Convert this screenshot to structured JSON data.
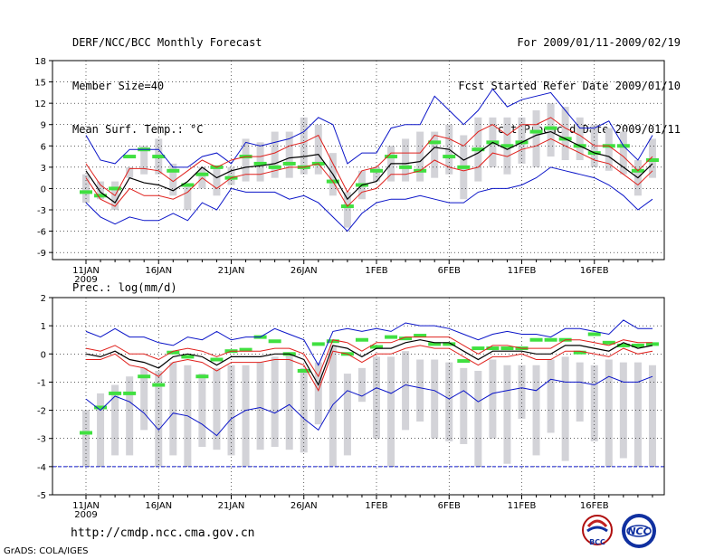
{
  "header": {
    "title": "DERF/NCC/BCC Monthly Forecast",
    "member_size": "Member Size=40",
    "variable": "Mean Surf. Temp.: °C",
    "period": "For 2009/01/11-2009/02/19",
    "started": "Fcst Started Refer Date 2009/01/10",
    "produced": "Fcst Produced Date 2009/01/11"
  },
  "footer": {
    "url": "http://cmdp.ncc.cma.gov.cn",
    "grads": "GrADS: COLA/IGES",
    "logo_bcc": "BCC",
    "logo_ncc": "NCC"
  },
  "colors": {
    "ensemble_mean": "#000000",
    "spread_band": "#e0201c",
    "extreme_band": "#0a14c8",
    "climatology": "#40e040",
    "member_range": "#d3d3d8",
    "grid": "#000000"
  },
  "chart_data": [
    {
      "type": "line",
      "title": "Mean Surf. Temp.: °C",
      "ylim": [
        -10,
        18
      ],
      "yticks": [
        -9,
        -6,
        -3,
        0,
        3,
        6,
        9,
        12,
        15,
        18
      ],
      "ytick_labels": [
        "-9",
        "-6",
        "-3",
        "0",
        "3",
        "6",
        "9",
        "12",
        "15",
        "18"
      ],
      "x_tick_labels": [
        "11JAN",
        "16JAN",
        "21JAN",
        "26JAN",
        "1FEB",
        "6FEB",
        "11FEB",
        "16FEB"
      ],
      "x_year_label": "2009",
      "days": 40,
      "series": [
        {
          "name": "ensemble mean",
          "values": [
            2.5,
            -0.5,
            -2,
            1.5,
            0.8,
            0.5,
            -0.3,
            1,
            3,
            1.5,
            2.5,
            3,
            3.2,
            3.5,
            4.3,
            4.5,
            4.8,
            2,
            -1.5,
            0.5,
            1,
            3.5,
            3.5,
            3.8,
            5.8,
            5.5,
            4,
            5,
            6.5,
            5.5,
            6.5,
            7.5,
            8,
            7,
            6,
            5,
            4.5,
            3,
            1.5,
            3.5
          ]
        },
        {
          "name": "upper spread",
          "values": [
            3.5,
            0.5,
            -1,
            2.8,
            2.8,
            2.5,
            1,
            2.5,
            4,
            3,
            4,
            4.5,
            4.5,
            5,
            6,
            6.5,
            7.5,
            3.5,
            -0.5,
            2.5,
            3,
            5,
            5,
            5,
            7.5,
            7,
            6,
            8,
            9,
            7.5,
            9,
            9,
            10,
            8.5,
            7.5,
            6,
            6,
            4.5,
            2.5,
            4.5
          ]
        },
        {
          "name": "lower spread",
          "values": [
            1.5,
            -1.5,
            -2.5,
            0,
            -1,
            -1,
            -1.5,
            -0.5,
            1.5,
            0,
            1.5,
            2,
            2,
            2.5,
            3,
            3,
            3.5,
            1,
            -2.5,
            -0.5,
            0,
            2,
            2,
            2.5,
            4,
            3,
            2.5,
            3,
            5,
            4.5,
            5.5,
            6,
            7,
            6,
            5,
            4,
            3.5,
            2,
            0.5,
            2.5
          ]
        },
        {
          "name": "max member",
          "values": [
            7.5,
            4,
            3.5,
            5.5,
            5.5,
            5.5,
            3,
            3,
            4.5,
            5,
            3.5,
            6.5,
            6,
            6.5,
            7,
            8,
            10,
            9,
            3.5,
            5,
            5,
            8.5,
            9,
            9,
            13,
            11,
            9,
            11,
            14,
            11.5,
            12.5,
            13,
            13.5,
            11,
            8.5,
            8.5,
            9.5,
            6,
            4,
            7.5
          ]
        },
        {
          "name": "min member",
          "values": [
            -2,
            -4,
            -5,
            -4,
            -4.5,
            -4.5,
            -3.5,
            -4.5,
            -2,
            -3,
            0,
            -0.5,
            -0.5,
            -0.5,
            -1.5,
            -1,
            -2,
            -4,
            -6,
            -3.5,
            -2,
            -1.5,
            -1.5,
            -1,
            -1.5,
            -2,
            -2,
            -0.5,
            0,
            0,
            0.5,
            1.5,
            3,
            2.5,
            2,
            1.5,
            0.5,
            -1,
            -3,
            -1.5
          ]
        },
        {
          "name": "climatology",
          "values": [
            -0.5,
            -1,
            0,
            4.5,
            5.5,
            4.5,
            2.5,
            0.5,
            2,
            3,
            1.5,
            4.5,
            3.5,
            3,
            3.5,
            3,
            3.5,
            1,
            -2.5,
            0.5,
            2.5,
            4.5,
            3,
            2.5,
            6.5,
            4.5,
            3,
            5.5,
            6.5,
            6,
            6.5,
            8,
            8.5,
            7,
            6,
            5,
            6,
            6,
            2.5,
            4
          ]
        },
        {
          "name": "member range high",
          "values": [
            2,
            1,
            1,
            3,
            6,
            7,
            3.5,
            0.5,
            3,
            3,
            3,
            7,
            6.5,
            8,
            8,
            10,
            9,
            5,
            -0.5,
            2.5,
            3,
            6,
            7,
            8,
            8,
            9,
            7.5,
            10,
            10,
            10,
            10,
            11,
            12,
            11.5,
            10,
            9,
            8.5,
            8,
            4,
            7
          ]
        },
        {
          "name": "member range low",
          "values": [
            -2,
            -1.5,
            -3,
            1.5,
            2,
            2,
            -1,
            -3,
            0,
            -1,
            0.5,
            1,
            1,
            1.5,
            1.5,
            2,
            2,
            -1,
            -5.5,
            -1.5,
            1,
            1,
            1,
            1,
            1.5,
            2,
            -1.5,
            1,
            3,
            2,
            3.5,
            3,
            4.5,
            4,
            4,
            3,
            2.5,
            2,
            -1,
            1.5
          ]
        }
      ]
    },
    {
      "type": "line",
      "title": "Prec.: log(mm/d)",
      "ylim": [
        -5,
        2
      ],
      "yticks": [
        -5,
        -4,
        -3,
        -2,
        -1,
        0,
        1,
        2
      ],
      "ytick_labels": [
        "-5",
        "-4",
        "-3",
        "-2",
        "-1",
        "0",
        "1",
        "2"
      ],
      "x_tick_labels": [
        "11JAN",
        "16JAN",
        "21JAN",
        "26JAN",
        "1FEB",
        "6FEB",
        "11FEB",
        "16FEB"
      ],
      "x_year_label": "2009",
      "days": 40,
      "series": [
        {
          "name": "ensemble mean",
          "values": [
            0,
            -0.1,
            0.1,
            -0.2,
            -0.3,
            -0.5,
            -0.1,
            0,
            -0.1,
            -0.4,
            -0.1,
            -0.1,
            -0.1,
            0,
            0,
            -0.2,
            -1.1,
            0.3,
            0.2,
            -0.1,
            0.2,
            0.2,
            0.4,
            0.5,
            0.4,
            0.4,
            0.1,
            -0.2,
            0.1,
            0.1,
            0.1,
            0,
            0,
            0.3,
            0.3,
            0.2,
            0.1,
            0.4,
            0.2,
            0.3
          ]
        },
        {
          "name": "upper spread",
          "values": [
            0.2,
            0.1,
            0.3,
            0,
            0,
            -0.2,
            0.1,
            0.2,
            0.1,
            -0.1,
            0.1,
            0.1,
            0.1,
            0.2,
            0.2,
            0,
            -0.8,
            0.5,
            0.4,
            0.1,
            0.4,
            0.4,
            0.6,
            0.6,
            0.6,
            0.6,
            0.3,
            0,
            0.3,
            0.3,
            0.2,
            0.2,
            0.2,
            0.5,
            0.5,
            0.4,
            0.3,
            0.5,
            0.4,
            0.4
          ]
        },
        {
          "name": "lower spread",
          "values": [
            -0.2,
            -0.2,
            0,
            -0.4,
            -0.5,
            -0.8,
            -0.3,
            -0.2,
            -0.3,
            -0.6,
            -0.3,
            -0.3,
            -0.3,
            -0.2,
            -0.2,
            -0.4,
            -1.3,
            0.1,
            0,
            -0.3,
            0,
            0,
            0.2,
            0.3,
            0.2,
            0.2,
            -0.1,
            -0.4,
            -0.1,
            -0.1,
            0,
            -0.2,
            -0.2,
            0.1,
            0.1,
            0,
            -0.1,
            0.2,
            0,
            0.1
          ]
        },
        {
          "name": "max member",
          "values": [
            0.8,
            0.6,
            0.9,
            0.6,
            0.6,
            0.4,
            0.3,
            0.6,
            0.5,
            0.8,
            0.5,
            0.6,
            0.6,
            0.9,
            0.7,
            0.5,
            -0.4,
            0.8,
            0.9,
            0.8,
            0.9,
            0.8,
            1.1,
            1,
            1,
            0.9,
            0.7,
            0.5,
            0.7,
            0.8,
            0.7,
            0.7,
            0.6,
            0.9,
            0.9,
            0.8,
            0.7,
            1.2,
            0.9,
            0.9
          ]
        },
        {
          "name": "min member",
          "values": [
            -1.6,
            -2,
            -1.5,
            -1.7,
            -2.1,
            -2.7,
            -2.1,
            -2.2,
            -2.5,
            -2.9,
            -2.3,
            -2,
            -1.9,
            -2.1,
            -1.8,
            -2.3,
            -2.7,
            -1.8,
            -1.3,
            -1.5,
            -1.2,
            -1.4,
            -1.1,
            -1.2,
            -1.3,
            -1.6,
            -1.3,
            -1.7,
            -1.4,
            -1.3,
            -1.2,
            -1.3,
            -0.9,
            -1,
            -1,
            -1.1,
            -0.8,
            -1,
            -1,
            -0.8
          ]
        },
        {
          "name": "climatology",
          "values": [
            -2.8,
            -1.9,
            -1.4,
            -1.4,
            -0.8,
            -1.1,
            0.05,
            -0.1,
            -0.8,
            -0.2,
            0.1,
            0.15,
            0.6,
            0.45,
            0,
            -0.6,
            0.35,
            0.45,
            0,
            0.5,
            0.25,
            0.6,
            0.55,
            0.65,
            0.35,
            0.35,
            -0.25,
            0.2,
            0.2,
            0.2,
            0.2,
            0.5,
            0.5,
            0.5,
            0.05,
            0.7,
            0.4,
            0.3,
            0.3,
            0.35
          ]
        },
        {
          "name": "member range high",
          "values": [
            -2,
            -1.4,
            -1.1,
            -0.8,
            -0.5,
            -0.6,
            -0.3,
            -0.4,
            -0.7,
            -0.5,
            -0.4,
            -0.4,
            -0.3,
            -0.1,
            0,
            -0.5,
            -0.3,
            0.3,
            -0.7,
            -0.5,
            -0.1,
            -0.1,
            0.1,
            -0.2,
            -0.2,
            -0.3,
            -0.5,
            -0.6,
            -0.2,
            -0.4,
            -0.4,
            -0.4,
            -0.2,
            -0.1,
            -0.3,
            -0.4,
            -0.2,
            -0.3,
            -0.3,
            -0.4
          ]
        },
        {
          "name": "member range low",
          "values": [
            -4,
            -4,
            -3.6,
            -3.6,
            -2.7,
            -4,
            -3.6,
            -4,
            -3.3,
            -3.4,
            -3.6,
            -4,
            -3.4,
            -3.3,
            -3.4,
            -3.5,
            -2.5,
            -4,
            -3.6,
            -1.7,
            -3,
            -4,
            -2.7,
            -2.4,
            -3,
            -3.1,
            -3.2,
            -4,
            -3,
            -3.9,
            -2.3,
            -3.6,
            -2.8,
            -3.8,
            -2.4,
            -3.1,
            -4,
            -3.7,
            -4,
            -4
          ]
        }
      ]
    }
  ]
}
